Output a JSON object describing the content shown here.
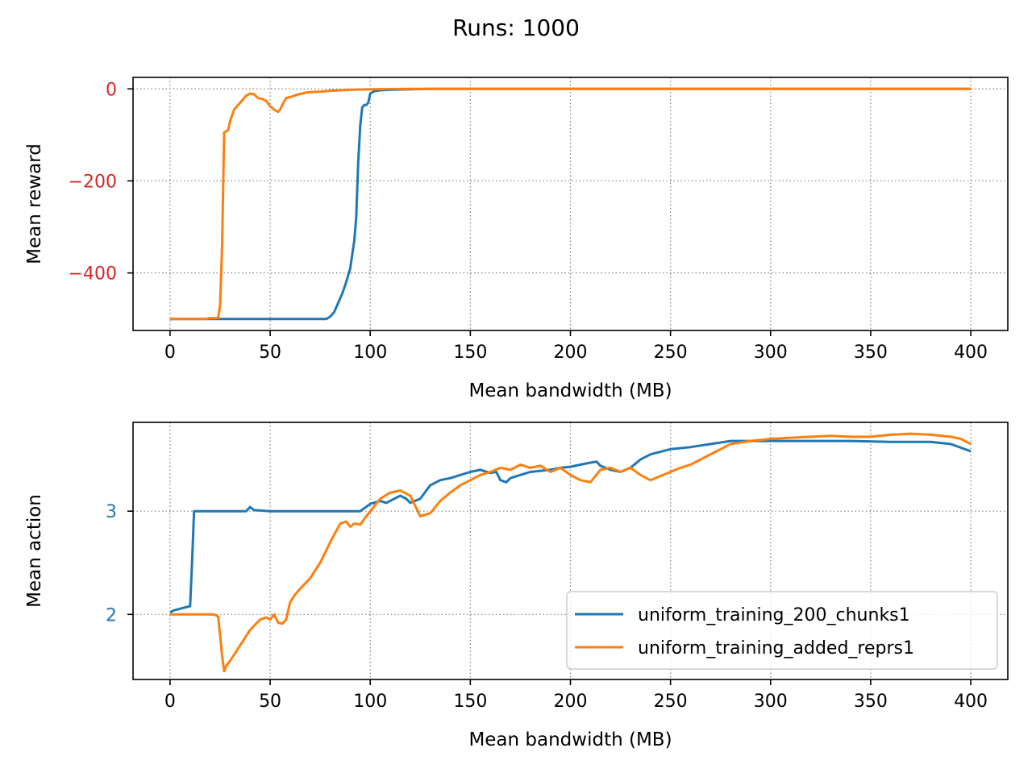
{
  "suptitle": "Runs: 1000",
  "colors": {
    "series0": "#1f77b4",
    "series1": "#ff7f0e",
    "reward_ticks": "#d62728",
    "action_ticks": "#1f77b4",
    "grid": "#808080"
  },
  "chart_data": [
    {
      "type": "line",
      "xlabel": "Mean bandwidth (MB)",
      "ylabel": "Mean reward",
      "xlim": [
        -18.5,
        418.5
      ],
      "ylim": [
        -525,
        25
      ],
      "xticks": [
        0,
        50,
        100,
        150,
        200,
        250,
        300,
        350,
        400
      ],
      "yticks": [
        -400,
        -200,
        0
      ],
      "ytick_labels": [
        "−400",
        "−200",
        "0"
      ],
      "grid": true,
      "legend": "none",
      "series": [
        {
          "name": "uniform_training_200_chunks1",
          "x": [
            0,
            20,
            40,
            60,
            78,
            80,
            82,
            84,
            86,
            88,
            90,
            91,
            92,
            93,
            94,
            95,
            96,
            97,
            98,
            99,
            100,
            102,
            105,
            110,
            120,
            130,
            150,
            200,
            250,
            300,
            350,
            400
          ],
          "y": [
            -500,
            -500,
            -500,
            -500,
            -500,
            -495,
            -485,
            -465,
            -445,
            -420,
            -390,
            -360,
            -330,
            -280,
            -160,
            -80,
            -40,
            -35,
            -35,
            -30,
            -10,
            -5,
            -3,
            -2,
            -1,
            0,
            0,
            0,
            0,
            0,
            0,
            0
          ]
        },
        {
          "name": "uniform_training_added_reprs1",
          "x": [
            0,
            10,
            18,
            20,
            22,
            24,
            25,
            26,
            27,
            28,
            29,
            30,
            32,
            34,
            36,
            38,
            40,
            42,
            44,
            46,
            48,
            50,
            52,
            54,
            55,
            56,
            58,
            60,
            62,
            64,
            66,
            68,
            70,
            75,
            80,
            90,
            100,
            120,
            150,
            200,
            250,
            300,
            350,
            400
          ],
          "y": [
            -500,
            -500,
            -500,
            -498,
            -498,
            -498,
            -470,
            -340,
            -95,
            -92,
            -90,
            -70,
            -45,
            -35,
            -25,
            -15,
            -10,
            -12,
            -20,
            -22,
            -26,
            -38,
            -45,
            -50,
            -45,
            -35,
            -20,
            -18,
            -15,
            -12,
            -10,
            -8,
            -7,
            -6,
            -4,
            -2,
            -1,
            0,
            0,
            0,
            0,
            0,
            0,
            0
          ]
        }
      ]
    },
    {
      "type": "line",
      "xlabel": "Mean bandwidth (MB)",
      "ylabel": "Mean action",
      "xlim": [
        -18.5,
        418.5
      ],
      "ylim": [
        1.37,
        3.86
      ],
      "xticks": [
        0,
        50,
        100,
        150,
        200,
        250,
        300,
        350,
        400
      ],
      "yticks": [
        2,
        3
      ],
      "ytick_labels": [
        "2",
        "3"
      ],
      "grid": true,
      "legend": "lower right",
      "series": [
        {
          "name": "uniform_training_200_chunks1",
          "x": [
            0,
            2,
            4,
            6,
            10,
            11,
            12,
            13,
            20,
            30,
            38,
            40,
            42,
            50,
            60,
            70,
            80,
            90,
            95,
            100,
            105,
            108,
            110,
            112,
            115,
            118,
            120,
            125,
            128,
            130,
            135,
            140,
            145,
            150,
            155,
            160,
            163,
            165,
            168,
            170,
            175,
            180,
            190,
            195,
            200,
            205,
            210,
            213,
            215,
            220,
            225,
            230,
            235,
            240,
            250,
            260,
            270,
            280,
            290,
            300,
            320,
            340,
            360,
            380,
            390,
            400
          ],
          "y": [
            2.02,
            2.04,
            2.05,
            2.06,
            2.08,
            2.5,
            3.0,
            3.0,
            3.0,
            3.0,
            3.0,
            3.04,
            3.01,
            3.0,
            3.0,
            3.0,
            3.0,
            3.0,
            3.0,
            3.07,
            3.1,
            3.08,
            3.1,
            3.12,
            3.15,
            3.12,
            3.08,
            3.12,
            3.2,
            3.25,
            3.3,
            3.32,
            3.35,
            3.38,
            3.4,
            3.37,
            3.38,
            3.3,
            3.28,
            3.32,
            3.35,
            3.38,
            3.4,
            3.42,
            3.43,
            3.45,
            3.47,
            3.48,
            3.44,
            3.4,
            3.38,
            3.42,
            3.5,
            3.55,
            3.6,
            3.62,
            3.65,
            3.68,
            3.68,
            3.68,
            3.68,
            3.68,
            3.67,
            3.67,
            3.65,
            3.58
          ]
        },
        {
          "name": "uniform_training_added_reprs1",
          "x": [
            0,
            10,
            20,
            22,
            24,
            25,
            26,
            27,
            28,
            30,
            35,
            40,
            45,
            48,
            50,
            52,
            54,
            56,
            58,
            60,
            62,
            65,
            70,
            75,
            80,
            85,
            88,
            90,
            92,
            95,
            98,
            100,
            105,
            110,
            115,
            120,
            125,
            130,
            135,
            140,
            145,
            150,
            155,
            160,
            165,
            170,
            175,
            180,
            185,
            190,
            195,
            200,
            205,
            210,
            215,
            220,
            225,
            230,
            235,
            240,
            245,
            250,
            255,
            260,
            265,
            270,
            275,
            280,
            290,
            300,
            320,
            330,
            340,
            350,
            360,
            370,
            380,
            390,
            395,
            400
          ],
          "y": [
            2.0,
            2.0,
            2.0,
            2.0,
            1.98,
            1.8,
            1.6,
            1.45,
            1.5,
            1.55,
            1.7,
            1.85,
            1.95,
            1.97,
            1.95,
            2.0,
            1.92,
            1.91,
            1.95,
            2.12,
            2.18,
            2.25,
            2.35,
            2.5,
            2.7,
            2.88,
            2.9,
            2.85,
            2.88,
            2.87,
            2.95,
            3.0,
            3.12,
            3.18,
            3.2,
            3.15,
            2.95,
            2.98,
            3.1,
            3.18,
            3.25,
            3.3,
            3.35,
            3.38,
            3.42,
            3.4,
            3.45,
            3.42,
            3.44,
            3.38,
            3.42,
            3.35,
            3.3,
            3.28,
            3.4,
            3.42,
            3.38,
            3.42,
            3.35,
            3.3,
            3.34,
            3.38,
            3.42,
            3.45,
            3.5,
            3.55,
            3.6,
            3.65,
            3.68,
            3.7,
            3.72,
            3.73,
            3.72,
            3.72,
            3.74,
            3.75,
            3.74,
            3.72,
            3.7,
            3.65
          ]
        }
      ]
    }
  ]
}
